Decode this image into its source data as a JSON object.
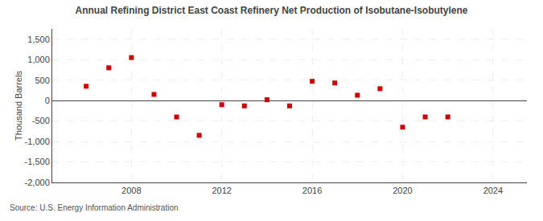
{
  "chart_data": {
    "type": "scatter",
    "title": "Annual Refining District East Coast Refinery Net Production of Isobutane-Isobutylene",
    "ylabel": "Thousand Barrels",
    "annotations": [
      "Source: U.S. Energy Information Administration"
    ],
    "x": [
      2006,
      2007,
      2008,
      2009,
      2010,
      2011,
      2012,
      2013,
      2014,
      2015,
      2016,
      2017,
      2018,
      2019,
      2020,
      2021,
      2022
    ],
    "values": [
      350,
      800,
      1050,
      150,
      -400,
      -850,
      -100,
      -130,
      20,
      -130,
      470,
      430,
      130,
      290,
      -650,
      -400,
      -400
    ],
    "color": "#cc0000",
    "marker": "square",
    "xlim": [
      2004.5,
      2025.5
    ],
    "xticks": [
      2008,
      2012,
      2016,
      2020,
      2024
    ],
    "ylim": [
      -2000,
      1750
    ],
    "yticks": [
      {
        "value": -2000,
        "label": "-2,000"
      },
      {
        "value": -1500,
        "label": "-1,500"
      },
      {
        "value": -1000,
        "label": "-1,000"
      },
      -500,
      0,
      500,
      {
        "value": 1000,
        "label": "1,000"
      },
      {
        "value": 1500,
        "label": "1,500"
      }
    ],
    "grid": true
  }
}
